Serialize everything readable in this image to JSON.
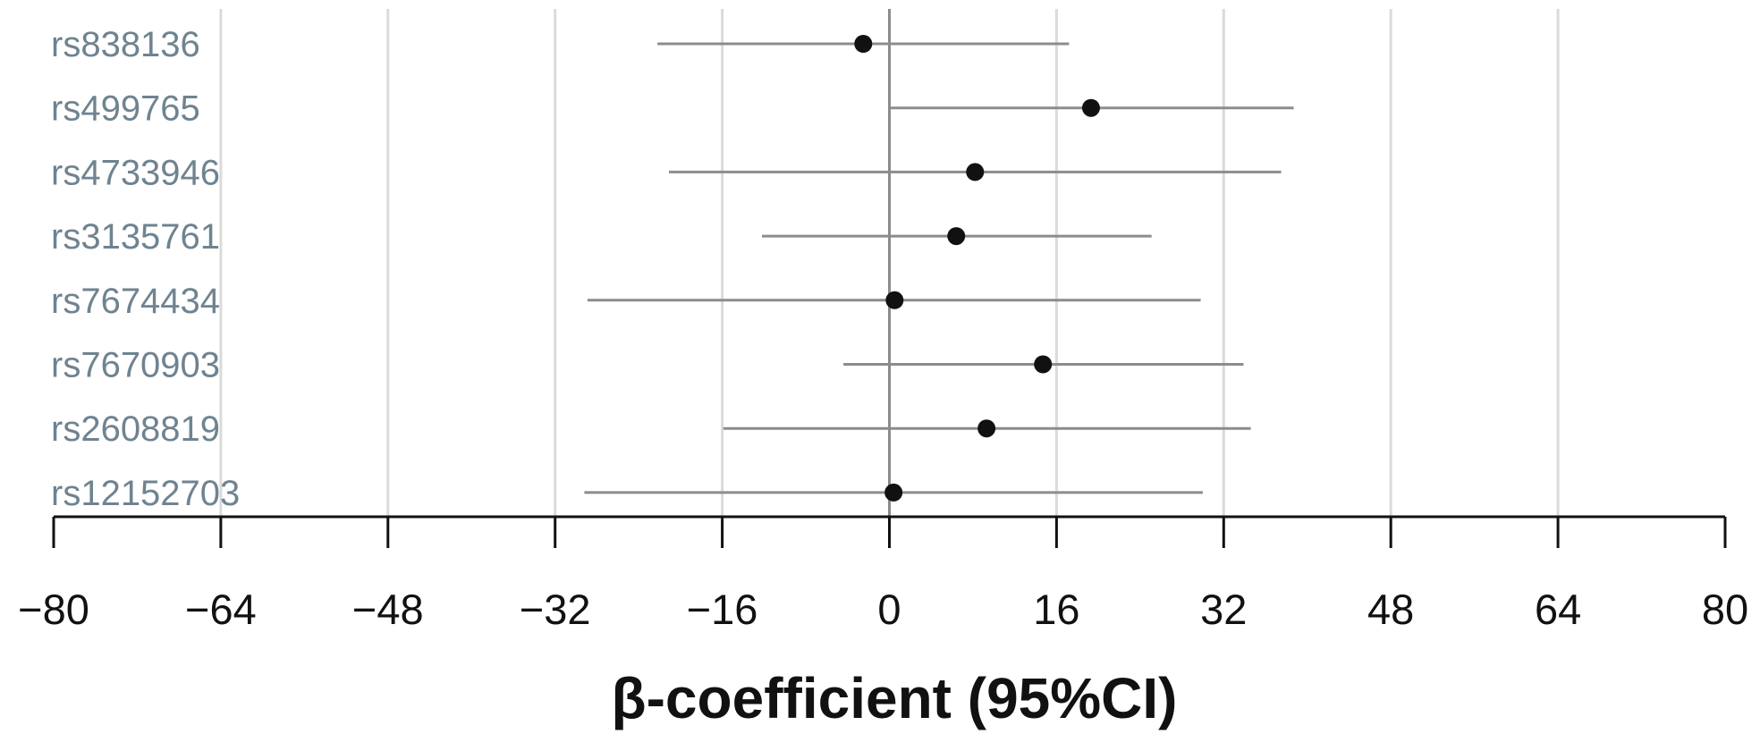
{
  "chart_data": {
    "type": "forest",
    "xlabel": "β-coefficient (95%CI)",
    "xlim": [
      -80,
      80
    ],
    "xticks": [
      -80,
      -64,
      -48,
      -32,
      -16,
      0,
      16,
      32,
      48,
      64,
      80
    ],
    "xtick_labels": [
      "−80",
      "−64",
      "−48",
      "−32",
      "−16",
      "0",
      "16",
      "32",
      "48",
      "64",
      "80"
    ],
    "grid": true,
    "reference_line": 0,
    "colors": {
      "point": "#111111",
      "ci_line": "#8c8c8c",
      "grid": "#dadada",
      "reference": "#8c8c8c",
      "axis": "#111111",
      "label": "#6f8390"
    },
    "rows": [
      {
        "label": "rs838136",
        "beta": -2.5,
        "lower": -22.2,
        "upper": 17.2
      },
      {
        "label": "rs499765",
        "beta": 19.3,
        "lower": 0.0,
        "upper": 38.7
      },
      {
        "label": "rs4733946",
        "beta": 8.2,
        "lower": -21.1,
        "upper": 37.5
      },
      {
        "label": "rs3135761",
        "beta": 6.4,
        "lower": -12.2,
        "upper": 25.1
      },
      {
        "label": "rs7674434",
        "beta": 0.5,
        "lower": -28.9,
        "upper": 29.8
      },
      {
        "label": "rs7670903",
        "beta": 14.7,
        "lower": -4.4,
        "upper": 33.9
      },
      {
        "label": "rs2608819",
        "beta": 9.3,
        "lower": -15.9,
        "upper": 34.6
      },
      {
        "label": "rs12152703",
        "beta": 0.4,
        "lower": -29.2,
        "upper": 30.0
      }
    ]
  }
}
